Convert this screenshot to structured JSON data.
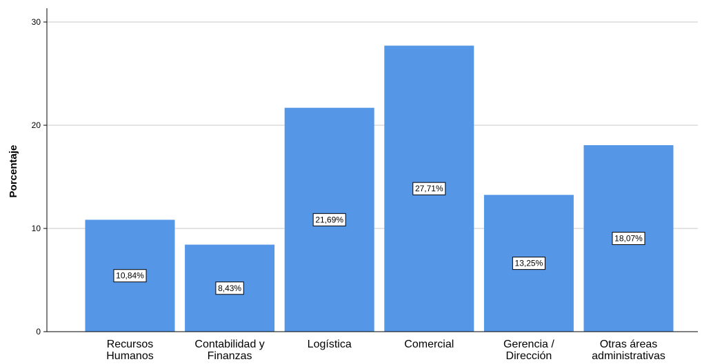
{
  "chart_data": {
    "type": "bar",
    "categories": [
      [
        "Recursos",
        "Humanos"
      ],
      [
        "Contabilidad y",
        "Finanzas"
      ],
      [
        "Logística"
      ],
      [
        "Comercial"
      ],
      [
        "Gerencia /",
        "Dirección"
      ],
      [
        "Otras áreas",
        "administrativas"
      ]
    ],
    "values": [
      10.84,
      8.43,
      21.69,
      27.71,
      13.25,
      18.07
    ],
    "data_labels": [
      "10,84%",
      "8,43%",
      "21,69%",
      "27,71%",
      "13,25%",
      "18,07%"
    ],
    "title": "",
    "xlabel": "",
    "ylabel": "Porcentaje",
    "ylim": [
      0,
      30
    ],
    "yticks": [
      0,
      10,
      20,
      30
    ],
    "ytick_labels": [
      "0",
      "10",
      "20",
      "30"
    ],
    "grid": true,
    "bar_color": "#5596e6",
    "grid_color": "#c8c8c8",
    "axis_color": "#000000"
  }
}
